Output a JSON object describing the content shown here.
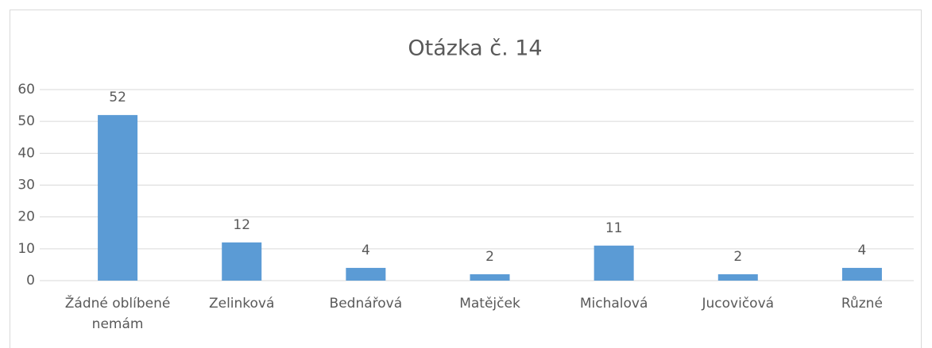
{
  "chart_data": {
    "type": "bar",
    "title": "Otázka č. 14",
    "categories": [
      "Žádné oblíbené nemám",
      "Zelinková",
      "Bednářová",
      "Matějček",
      "Michalová",
      "Jucovičová",
      "Různé"
    ],
    "values": [
      52,
      12,
      4,
      2,
      11,
      2,
      4
    ],
    "color": "#5b9bd5",
    "ylim": [
      0,
      60
    ],
    "yticks": [
      0,
      10,
      20,
      30,
      40,
      50,
      60
    ],
    "grid": true
  }
}
